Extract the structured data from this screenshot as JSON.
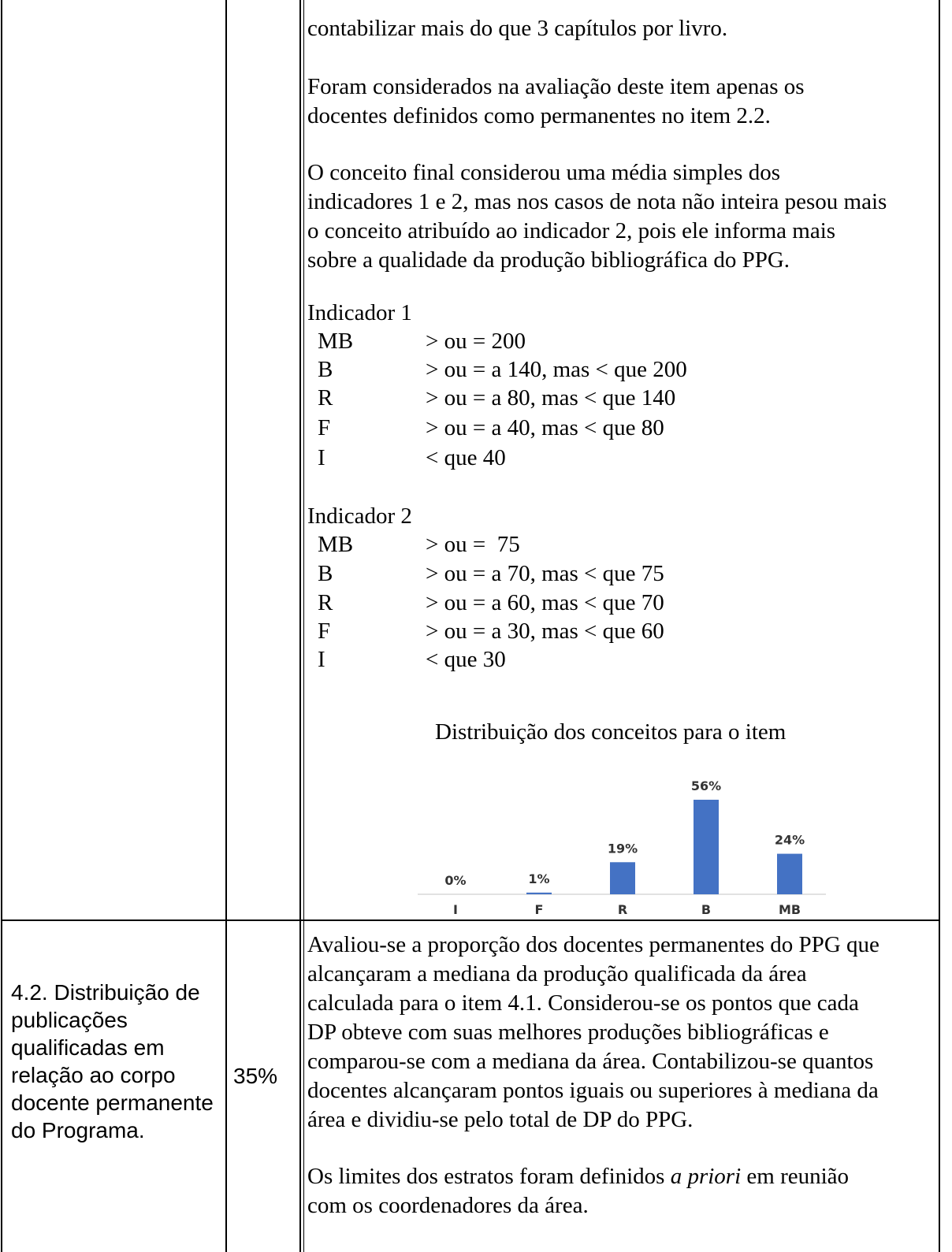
{
  "table": {
    "row1": {
      "continuation_lines": [
        "contabilizar mais do que 3 capítulos por livro."
      ],
      "para_permanentes": [
        "Foram considerados na avaliação deste item apenas os",
        "docentes definidos como permanentes no item 2.2."
      ],
      "para_conceito": [
        "O conceito final considerou uma média simples dos",
        "indicadores 1 e 2, mas nos casos de nota não inteira pesou mais",
        "o conceito atribuído ao indicador 2, pois ele informa mais",
        "sobre a qualidade da produção bibliográfica do PPG."
      ],
      "indicador1": {
        "title": "Indicador 1",
        "rows": [
          {
            "level": "MB",
            "criteria": "> ou = 200"
          },
          {
            "level": "B",
            "criteria": "> ou = a 140, mas < que 200"
          },
          {
            "level": "R",
            "criteria": "> ou = a 80, mas < que 140"
          },
          {
            "level": "F",
            "criteria": "> ou = a 40, mas < que 80"
          },
          {
            "level": "I",
            "criteria": "< que 40"
          }
        ]
      },
      "indicador2": {
        "title": "Indicador 2",
        "rows": [
          {
            "level": "MB",
            "criteria": "> ou =  75"
          },
          {
            "level": "B",
            "criteria": "> ou = a 70, mas < que 75"
          },
          {
            "level": "R",
            "criteria": "> ou = a 60, mas < que 70"
          },
          {
            "level": "F",
            "criteria": "> ou = a 30, mas < que 60"
          },
          {
            "level": "I",
            "criteria": "< que 30"
          }
        ]
      },
      "chart_heading": "Distribuição dos conceitos para o item"
    },
    "row2": {
      "label_lines": [
        "4.2. Distribuição de",
        "publicações",
        "qualificadas em",
        "relação ao corpo",
        "docente permanente",
        "do Programa."
      ],
      "weight": "35%",
      "para_avaliou": [
        "Avaliou-se a proporção dos docentes permanentes do PPG que",
        "alcançaram a mediana da produção qualificada da área",
        "calculada para o item 4.1. Considerou-se os pontos que cada",
        "DP obteve com suas melhores produções bibliográficas e",
        "comparou-se com a mediana da área. Contabilizou-se quantos",
        "docentes alcançaram pontos iguais ou superiores à mediana da",
        "área e dividiu-se pelo total de DP do PPG."
      ],
      "para_limites": {
        "before": "Os limites dos estratos foram definidos ",
        "italic": "a priori",
        "after": " em reunião",
        "line2": "com os coordenadores da área."
      }
    }
  },
  "chart_data": {
    "type": "bar",
    "categories": [
      "I",
      "F",
      "R",
      "B",
      "MB"
    ],
    "values": [
      0,
      1,
      19,
      56,
      24
    ],
    "data_labels": [
      "0%",
      "1%",
      "19%",
      "56%",
      "24%"
    ],
    "unit": "%",
    "title": "",
    "xlabel": "",
    "ylabel": "",
    "ylim": [
      0,
      56
    ],
    "grid": false,
    "legend": "none",
    "bar_color": "#4472C4",
    "axis_color": "#d9d9d9"
  }
}
